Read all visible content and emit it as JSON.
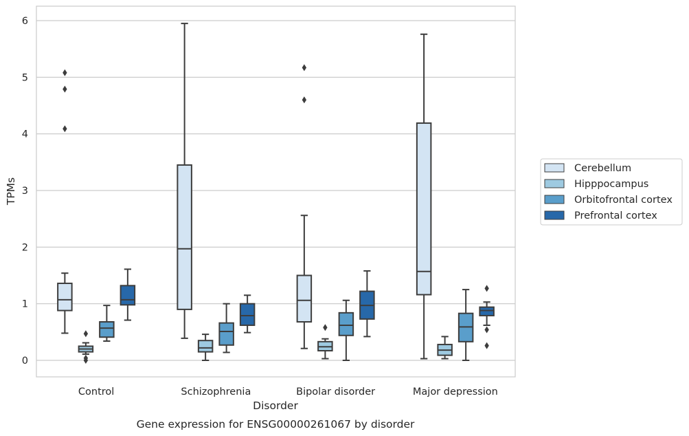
{
  "chart_data": {
    "type": "box",
    "title": "Gene expression for ENSG00000261067 by disorder",
    "xlabel": "Disorder",
    "ylabel": "TPMs",
    "ylim": [
      -0.3,
      6.25
    ],
    "yticks": [
      0,
      1,
      2,
      3,
      4,
      5,
      6
    ],
    "grid": "horizontal",
    "legend_position": "right",
    "categories": [
      "Control",
      "Schizophrenia",
      "Bipolar disorder",
      "Major depression"
    ],
    "series": [
      {
        "name": "Cerebellum",
        "color": "#d3e4f3",
        "boxes": [
          {
            "whisker_low": 0.48,
            "q1": 0.88,
            "median": 1.07,
            "q3": 1.36,
            "whisker_high": 1.54,
            "outliers": [
              4.09,
              4.79,
              5.08
            ]
          },
          {
            "whisker_low": 0.39,
            "q1": 0.9,
            "median": 1.97,
            "q3": 3.45,
            "whisker_high": 5.95,
            "outliers": []
          },
          {
            "whisker_low": 0.21,
            "q1": 0.68,
            "median": 1.06,
            "q3": 1.5,
            "whisker_high": 2.56,
            "outliers": [
              4.6,
              5.17
            ]
          },
          {
            "whisker_low": 0.03,
            "q1": 1.16,
            "median": 1.57,
            "q3": 4.19,
            "whisker_high": 5.76,
            "outliers": []
          }
        ]
      },
      {
        "name": "Hipppocampus",
        "color": "#9ecae1",
        "boxes": [
          {
            "whisker_low": 0.11,
            "q1": 0.15,
            "median": 0.2,
            "q3": 0.25,
            "whisker_high": 0.31,
            "outliers": [
              0.0,
              0.04,
              0.47
            ]
          },
          {
            "whisker_low": 0.0,
            "q1": 0.15,
            "median": 0.22,
            "q3": 0.35,
            "whisker_high": 0.46,
            "outliers": []
          },
          {
            "whisker_low": 0.03,
            "q1": 0.17,
            "median": 0.24,
            "q3": 0.33,
            "whisker_high": 0.38,
            "outliers": [
              0.58
            ]
          },
          {
            "whisker_low": 0.03,
            "q1": 0.09,
            "median": 0.18,
            "q3": 0.28,
            "whisker_high": 0.42,
            "outliers": []
          }
        ]
      },
      {
        "name": "Orbitofrontal cortex",
        "color": "#5a9ecb",
        "boxes": [
          {
            "whisker_low": 0.34,
            "q1": 0.41,
            "median": 0.57,
            "q3": 0.68,
            "whisker_high": 0.97,
            "outliers": []
          },
          {
            "whisker_low": 0.14,
            "q1": 0.27,
            "median": 0.51,
            "q3": 0.66,
            "whisker_high": 1.0,
            "outliers": []
          },
          {
            "whisker_low": 0.0,
            "q1": 0.44,
            "median": 0.62,
            "q3": 0.84,
            "whisker_high": 1.06,
            "outliers": []
          },
          {
            "whisker_low": 0.0,
            "q1": 0.33,
            "median": 0.59,
            "q3": 0.83,
            "whisker_high": 1.25,
            "outliers": []
          }
        ]
      },
      {
        "name": "Prefrontal cortex",
        "color": "#2768a9",
        "boxes": [
          {
            "whisker_low": 0.71,
            "q1": 0.98,
            "median": 1.07,
            "q3": 1.32,
            "whisker_high": 1.61,
            "outliers": []
          },
          {
            "whisker_low": 0.49,
            "q1": 0.62,
            "median": 0.79,
            "q3": 1.0,
            "whisker_high": 1.15,
            "outliers": []
          },
          {
            "whisker_low": 0.42,
            "q1": 0.73,
            "median": 0.97,
            "q3": 1.22,
            "whisker_high": 1.58,
            "outliers": []
          },
          {
            "whisker_low": 0.62,
            "q1": 0.79,
            "median": 0.88,
            "q3": 0.94,
            "whisker_high": 1.03,
            "outliers": [
              0.26,
              0.54,
              1.27
            ]
          }
        ]
      }
    ]
  }
}
